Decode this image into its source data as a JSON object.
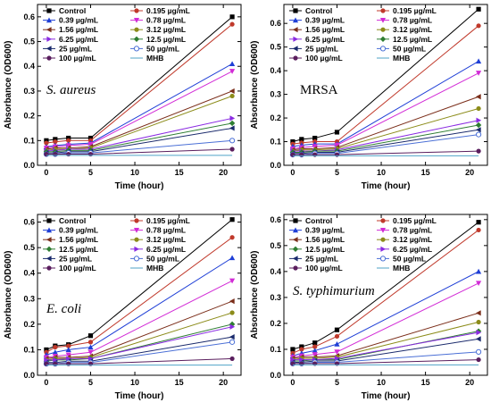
{
  "chart_data": [
    {
      "type": "line",
      "organism_label": "S. aureus",
      "xlabel": "Time (hour)",
      "ylabel": "Absorbance (OD600)",
      "x": [
        0,
        1,
        2.5,
        5,
        21
      ],
      "xticks": [
        "0",
        "5",
        "10",
        "15",
        "20"
      ],
      "yticks": [
        "0.0",
        "0.1",
        "0.2",
        "0.3",
        "0.4",
        "0.5",
        "0.6"
      ],
      "xlim": [
        -1,
        22
      ],
      "ylim": [
        0,
        0.65
      ],
      "legend_position": "top-left",
      "series": [
        {
          "name": "Control",
          "color": "#000000",
          "marker": "square",
          "values": [
            0.1,
            0.105,
            0.11,
            0.11,
            0.6
          ]
        },
        {
          "name": "0.195 µg/mL",
          "color": "#c0392b",
          "marker": "circle",
          "values": [
            0.09,
            0.095,
            0.1,
            0.1,
            0.57
          ]
        },
        {
          "name": "0.39 µg/mL",
          "color": "#1f3fd6",
          "marker": "triangle-up",
          "values": [
            0.075,
            0.08,
            0.085,
            0.09,
            0.41
          ]
        },
        {
          "name": "0.78 µg/mL",
          "color": "#d22bd6",
          "marker": "triangle-down",
          "values": [
            0.07,
            0.075,
            0.08,
            0.085,
            0.38
          ]
        },
        {
          "name": "1.56 µg/mL",
          "color": "#7b2e1a",
          "marker": "triangle-left",
          "values": [
            0.065,
            0.07,
            0.07,
            0.075,
            0.3
          ]
        },
        {
          "name": "3.12 µg/mL",
          "color": "#8c8c1a",
          "marker": "circle",
          "values": [
            0.06,
            0.065,
            0.065,
            0.07,
            0.28
          ]
        },
        {
          "name": "6.25 µg/mL",
          "color": "#8a2be2",
          "marker": "triangle-right",
          "values": [
            0.06,
            0.06,
            0.065,
            0.065,
            0.19
          ]
        },
        {
          "name": "12.5 µg/mL",
          "color": "#2e7d32",
          "marker": "diamond",
          "values": [
            0.055,
            0.055,
            0.06,
            0.06,
            0.17
          ]
        },
        {
          "name": "25 µg/mL",
          "color": "#1a2a6c",
          "marker": "triangle-left",
          "values": [
            0.05,
            0.05,
            0.055,
            0.055,
            0.15
          ]
        },
        {
          "name": "50 µg/mL",
          "color": "#4a6fd6",
          "marker": "open-circle",
          "values": [
            0.045,
            0.045,
            0.05,
            0.05,
            0.1
          ]
        },
        {
          "name": "100 µg/mL",
          "color": "#5a1e5e",
          "marker": "circle",
          "values": [
            0.045,
            0.045,
            0.045,
            0.045,
            0.065
          ]
        },
        {
          "name": "MHB",
          "color": "#4fa3c7",
          "marker": "none",
          "values": [
            0.04,
            0.04,
            0.04,
            0.04,
            0.04
          ]
        }
      ]
    },
    {
      "type": "line",
      "organism_label": "MRSA",
      "xlabel": "Time (hour)",
      "ylabel": "Absorbance (OD600)",
      "x": [
        0,
        1,
        2.5,
        5,
        21
      ],
      "xticks": [
        "0",
        "5",
        "10",
        "15",
        "20"
      ],
      "yticks": [
        "0.0",
        "0.1",
        "0.2",
        "0.3",
        "0.4",
        "0.5",
        "0.6"
      ],
      "xlim": [
        -1,
        22
      ],
      "ylim": [
        0,
        0.68
      ],
      "legend_position": "top-left",
      "series": [
        {
          "name": "Control",
          "color": "#000000",
          "marker": "square",
          "values": [
            0.1,
            0.11,
            0.115,
            0.14,
            0.66
          ]
        },
        {
          "name": "0.195 µg/mL",
          "color": "#c0392b",
          "marker": "circle",
          "values": [
            0.09,
            0.095,
            0.1,
            0.1,
            0.59
          ]
        },
        {
          "name": "0.39 µg/mL",
          "color": "#1f3fd6",
          "marker": "triangle-up",
          "values": [
            0.08,
            0.085,
            0.09,
            0.09,
            0.44
          ]
        },
        {
          "name": "0.78 µg/mL",
          "color": "#d22bd6",
          "marker": "triangle-down",
          "values": [
            0.07,
            0.075,
            0.08,
            0.085,
            0.39
          ]
        },
        {
          "name": "1.56 µg/mL",
          "color": "#7b2e1a",
          "marker": "triangle-left",
          "values": [
            0.065,
            0.07,
            0.07,
            0.075,
            0.29
          ]
        },
        {
          "name": "3.12 µg/mL",
          "color": "#8c8c1a",
          "marker": "circle",
          "values": [
            0.06,
            0.065,
            0.065,
            0.07,
            0.24
          ]
        },
        {
          "name": "6.25 µg/mL",
          "color": "#8a2be2",
          "marker": "triangle-right",
          "values": [
            0.06,
            0.06,
            0.06,
            0.065,
            0.19
          ]
        },
        {
          "name": "12.5 µg/mL",
          "color": "#2e7d32",
          "marker": "diamond",
          "values": [
            0.055,
            0.055,
            0.06,
            0.06,
            0.17
          ]
        },
        {
          "name": "25 µg/mL",
          "color": "#1a2a6c",
          "marker": "triangle-left",
          "values": [
            0.05,
            0.05,
            0.055,
            0.055,
            0.15
          ]
        },
        {
          "name": "50 µg/mL",
          "color": "#4a6fd6",
          "marker": "open-circle",
          "values": [
            0.045,
            0.045,
            0.05,
            0.05,
            0.13
          ]
        },
        {
          "name": "100 µg/mL",
          "color": "#5a1e5e",
          "marker": "circle",
          "values": [
            0.045,
            0.045,
            0.045,
            0.045,
            0.06
          ]
        },
        {
          "name": "MHB",
          "color": "#4fa3c7",
          "marker": "none",
          "values": [
            0.04,
            0.04,
            0.04,
            0.04,
            0.04
          ]
        }
      ]
    },
    {
      "type": "line",
      "organism_label": "E. coli",
      "xlabel": "Time (hour)",
      "ylabel": "Absorbance (OD600)",
      "x": [
        0,
        1,
        2.5,
        5,
        21
      ],
      "xticks": [
        "0",
        "5",
        "10",
        "15",
        "20"
      ],
      "yticks": [
        "0.0",
        "0.1",
        "0.2",
        "0.3",
        "0.4",
        "0.5",
        "0.6"
      ],
      "xlim": [
        -1,
        22
      ],
      "ylim": [
        0,
        0.63
      ],
      "legend_position": "top-left",
      "series": [
        {
          "name": "Control",
          "color": "#000000",
          "marker": "square",
          "values": [
            0.1,
            0.115,
            0.12,
            0.155,
            0.61
          ]
        },
        {
          "name": "0.195 µg/mL",
          "color": "#c0392b",
          "marker": "circle",
          "values": [
            0.09,
            0.11,
            0.115,
            0.13,
            0.54
          ]
        },
        {
          "name": "0.39 µg/mL",
          "color": "#1f3fd6",
          "marker": "triangle-up",
          "values": [
            0.08,
            0.09,
            0.1,
            0.11,
            0.46
          ]
        },
        {
          "name": "0.78 µg/mL",
          "color": "#d22bd6",
          "marker": "triangle-down",
          "values": [
            0.07,
            0.075,
            0.08,
            0.09,
            0.37
          ]
        },
        {
          "name": "1.56 µg/mL",
          "color": "#7b2e1a",
          "marker": "triangle-left",
          "values": [
            0.065,
            0.07,
            0.07,
            0.075,
            0.29
          ]
        },
        {
          "name": "3.12 µg/mL",
          "color": "#8c8c1a",
          "marker": "circle",
          "values": [
            0.06,
            0.065,
            0.065,
            0.07,
            0.245
          ]
        },
        {
          "name": "12.5 µg/mL",
          "color": "#2e7d32",
          "marker": "diamond",
          "values": [
            0.055,
            0.06,
            0.06,
            0.065,
            0.2
          ]
        },
        {
          "name": "6.25 µg/mL",
          "color": "#8a2be2",
          "marker": "triangle-right",
          "values": [
            0.06,
            0.06,
            0.065,
            0.065,
            0.19
          ]
        },
        {
          "name": "25 µg/mL",
          "color": "#1a2a6c",
          "marker": "triangle-left",
          "values": [
            0.05,
            0.05,
            0.055,
            0.055,
            0.15
          ]
        },
        {
          "name": "50 µg/mL",
          "color": "#4a6fd6",
          "marker": "open-circle",
          "values": [
            0.045,
            0.045,
            0.05,
            0.05,
            0.13
          ]
        },
        {
          "name": "100 µg/mL",
          "color": "#5a1e5e",
          "marker": "circle",
          "values": [
            0.045,
            0.045,
            0.045,
            0.045,
            0.065
          ]
        },
        {
          "name": "MHB",
          "color": "#4fa3c7",
          "marker": "none",
          "values": [
            0.04,
            0.04,
            0.04,
            0.04,
            0.04
          ]
        }
      ]
    },
    {
      "type": "line",
      "organism_label": "S. typhimurium",
      "xlabel": "Time (hour)",
      "ylabel": "Absorbance (OD600)",
      "x": [
        0,
        1,
        2.5,
        5,
        21
      ],
      "xticks": [
        "0",
        "5",
        "10",
        "15",
        "20"
      ],
      "yticks": [
        "0.0",
        "0.1",
        "0.2",
        "0.3",
        "0.4",
        "0.5",
        "0.6"
      ],
      "xlim": [
        -1,
        22
      ],
      "ylim": [
        0,
        0.62
      ],
      "legend_position": "top-left",
      "series": [
        {
          "name": "Control",
          "color": "#000000",
          "marker": "square",
          "values": [
            0.1,
            0.11,
            0.125,
            0.175,
            0.59
          ]
        },
        {
          "name": "0.195 µg/mL",
          "color": "#c0392b",
          "marker": "circle",
          "values": [
            0.085,
            0.1,
            0.11,
            0.15,
            0.56
          ]
        },
        {
          "name": "0.39 µg/mL",
          "color": "#1f3fd6",
          "marker": "triangle-up",
          "values": [
            0.075,
            0.085,
            0.095,
            0.12,
            0.4
          ]
        },
        {
          "name": "0.78 µg/mL",
          "color": "#d22bd6",
          "marker": "triangle-down",
          "values": [
            0.07,
            0.075,
            0.08,
            0.09,
            0.355
          ]
        },
        {
          "name": "1.56 µg/mL",
          "color": "#7b2e1a",
          "marker": "triangle-left",
          "values": [
            0.065,
            0.07,
            0.07,
            0.075,
            0.24
          ]
        },
        {
          "name": "3.12 µg/mL",
          "color": "#8c8c1a",
          "marker": "circle",
          "values": [
            0.06,
            0.065,
            0.065,
            0.07,
            0.205
          ]
        },
        {
          "name": "12.5 µg/mL",
          "color": "#2e7d32",
          "marker": "diamond",
          "values": [
            0.055,
            0.055,
            0.06,
            0.06,
            0.17
          ]
        },
        {
          "name": "6.25 µg/mL",
          "color": "#8a2be2",
          "marker": "triangle-right",
          "values": [
            0.06,
            0.06,
            0.06,
            0.065,
            0.165
          ]
        },
        {
          "name": "25 µg/mL",
          "color": "#1a2a6c",
          "marker": "triangle-left",
          "values": [
            0.05,
            0.05,
            0.055,
            0.055,
            0.14
          ]
        },
        {
          "name": "50 µg/mL",
          "color": "#4a6fd6",
          "marker": "open-circle",
          "values": [
            0.045,
            0.045,
            0.05,
            0.05,
            0.09
          ]
        },
        {
          "name": "100 µg/mL",
          "color": "#5a1e5e",
          "marker": "circle",
          "values": [
            0.045,
            0.045,
            0.045,
            0.045,
            0.06
          ]
        },
        {
          "name": "MHB",
          "color": "#4fa3c7",
          "marker": "none",
          "values": [
            0.04,
            0.04,
            0.04,
            0.04,
            0.04
          ]
        }
      ]
    }
  ]
}
